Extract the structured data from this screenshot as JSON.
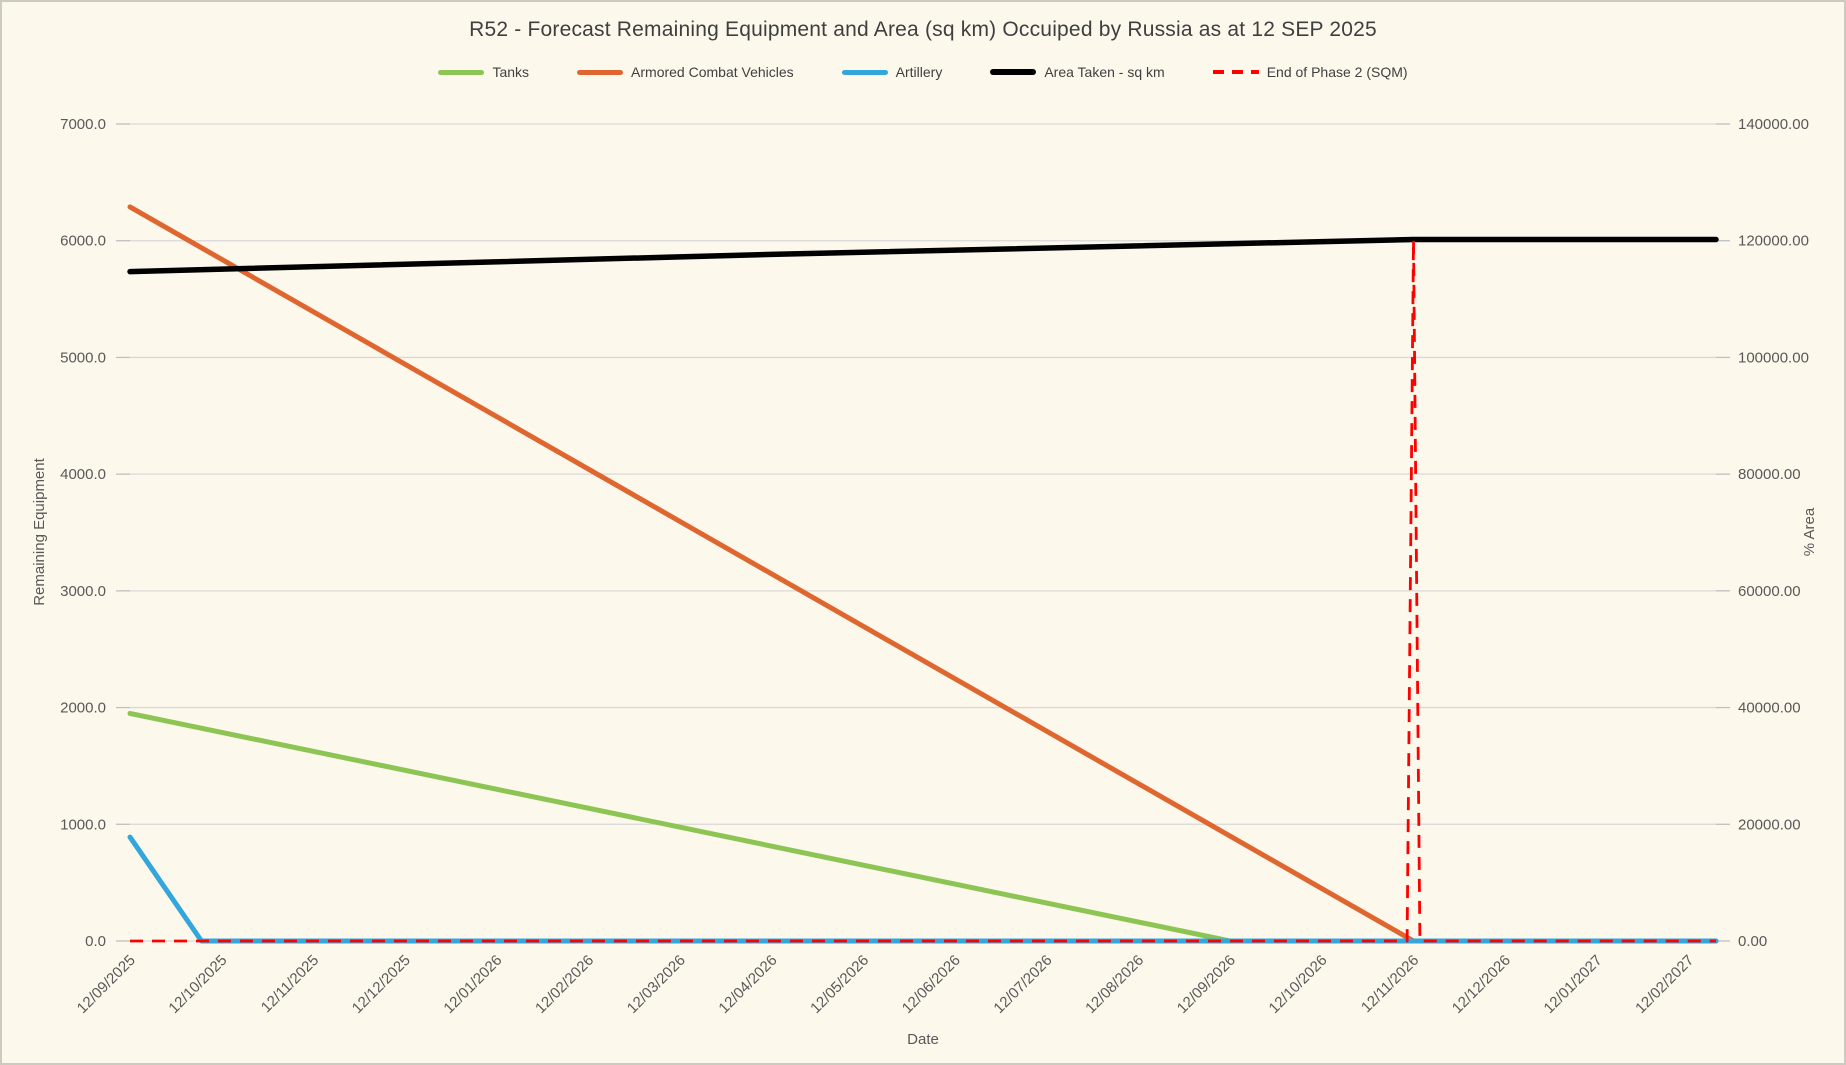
{
  "chart_data": {
    "type": "line",
    "title": "R52 - Forecast Remaining Equipment and Area (sq km) Occuiped by Russia as at 12 SEP 2025",
    "legend_position": "top",
    "grid": true,
    "x": {
      "title": "Date",
      "label_rotation": -45,
      "categories": [
        "12/09/2025",
        "12/10/2025",
        "12/11/2025",
        "12/12/2025",
        "12/01/2026",
        "12/02/2026",
        "12/03/2026",
        "12/04/2026",
        "12/05/2026",
        "12/06/2026",
        "12/07/2026",
        "12/08/2026",
        "12/09/2026",
        "12/10/2026",
        "12/11/2026",
        "12/12/2026",
        "12/01/2027",
        "12/02/2027"
      ],
      "extent_months": 17.3
    },
    "y_left": {
      "title": "Remaining Equipment",
      "min": 0,
      "max": 7000,
      "step": 1000,
      "tick_labels": [
        "0.0",
        "1000.0",
        "2000.0",
        "3000.0",
        "4000.0",
        "5000.0",
        "6000.0",
        "7000.0"
      ]
    },
    "y_right": {
      "title": "% Area",
      "min": 0,
      "max": 140000,
      "step": 20000,
      "tick_labels": [
        "0.00",
        "20000.00",
        "40000.00",
        "60000.00",
        "80000.00",
        "100000.00",
        "120000.00",
        "140000.00"
      ]
    },
    "colors": {
      "background": "#FDF8EC",
      "grid": "#D9D9D9",
      "tick": "#BFBFBF",
      "axis_text": "#595959",
      "title_text": "#3F3F3F"
    },
    "series": [
      {
        "name": "Tanks",
        "color": "#8DC554",
        "axis": "left",
        "style": "solid",
        "width": 5,
        "points": [
          [
            0,
            1950
          ],
          [
            12,
            0
          ],
          [
            17.3,
            0
          ]
        ]
      },
      {
        "name": "Armored Combat Vehicles",
        "color": "#E0662F",
        "axis": "left",
        "style": "solid",
        "width": 5,
        "points": [
          [
            0,
            6290
          ],
          [
            14,
            0
          ],
          [
            17.3,
            0
          ]
        ]
      },
      {
        "name": "Artillery",
        "color": "#33A6DC",
        "axis": "left",
        "style": "solid",
        "width": 5,
        "points": [
          [
            0,
            890
          ],
          [
            0.78,
            0
          ],
          [
            17.3,
            0
          ]
        ]
      },
      {
        "name": "Area Taken - sq km",
        "color": "#000000",
        "axis": "right",
        "style": "solid",
        "width": 5.5,
        "points": [
          [
            0,
            114700
          ],
          [
            7,
            117650
          ],
          [
            14,
            120200
          ],
          [
            17.3,
            120200
          ]
        ]
      },
      {
        "name": "End of Phase 2 (SQM)",
        "color": "#FF0000",
        "axis": "right",
        "style": "dashed",
        "width": 2.8,
        "points": [
          [
            0,
            0
          ],
          [
            13.93,
            0
          ],
          [
            14,
            120200
          ],
          [
            14.07,
            0
          ],
          [
            17.3,
            0
          ]
        ]
      }
    ]
  }
}
